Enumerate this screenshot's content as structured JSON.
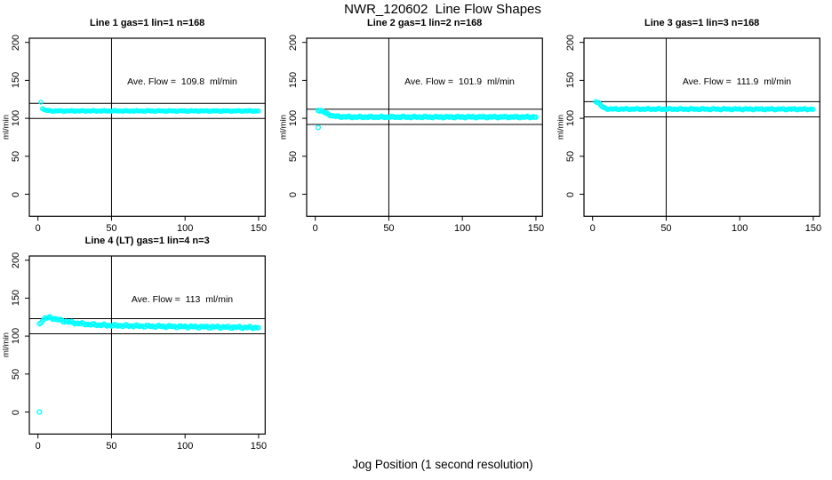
{
  "page": {
    "main_title": "NWR_120602  Line Flow Shapes",
    "bottom_axis_label": "Jog Position (1 second resolution)",
    "y_axis_label": "ml/min",
    "point_color": "#00FFFF",
    "axis_color": "#000000",
    "background_color": "#FFFFFF"
  },
  "axes": {
    "x_ticks": [
      0,
      50,
      100,
      150
    ],
    "y_ticks": [
      0,
      50,
      100,
      150,
      200
    ],
    "xlim": [
      -6,
      154
    ],
    "ylim": [
      -28,
      205
    ],
    "grid": false
  },
  "chart_data": [
    {
      "type": "scatter",
      "title": "Line 1 gas=1 lin=1 n=168",
      "annotation": "Ave. Flow =  109.8  ml/min",
      "ave_flow_ml_min": 109.8,
      "gas": 1,
      "lin": 1,
      "n": 168,
      "vline_x": 50,
      "ref_lines_y": [
        119.8,
        99.8
      ],
      "x_step": 1,
      "keypoints": [
        [
          2,
          121.5
        ],
        [
          3,
          113.5
        ],
        [
          4,
          111.5
        ],
        [
          6,
          110.3
        ],
        [
          10,
          109.7
        ],
        [
          150,
          109.7
        ]
      ],
      "extra_points": [],
      "jitter": 0.7,
      "point_radius": 2.1
    },
    {
      "type": "scatter",
      "title": "Line 2 gas=1 lin=2 n=168",
      "annotation": "Ave. Flow =  101.9  ml/min",
      "ave_flow_ml_min": 101.9,
      "gas": 1,
      "lin": 2,
      "n": 168,
      "vline_x": 50,
      "ref_lines_y": [
        111.9,
        91.9
      ],
      "x_step": 1,
      "keypoints": [
        [
          2,
          110.8
        ],
        [
          4,
          110.2
        ],
        [
          6,
          108.0
        ],
        [
          9,
          105.0
        ],
        [
          12,
          103.2
        ],
        [
          16,
          102.2
        ],
        [
          24,
          101.7
        ],
        [
          150,
          101.7
        ]
      ],
      "extra_points": [
        [
          2,
          88
        ]
      ],
      "jitter": 1.0,
      "point_radius": 2.4
    },
    {
      "type": "scatter",
      "title": "Line 3 gas=1 lin=3 n=168",
      "annotation": "Ave. Flow =  111.9  ml/min",
      "ave_flow_ml_min": 111.9,
      "gas": 1,
      "lin": 3,
      "n": 168,
      "vline_x": 50,
      "ref_lines_y": [
        121.9,
        101.9
      ],
      "x_step": 1,
      "keypoints": [
        [
          2,
          122.5
        ],
        [
          4,
          121.0
        ],
        [
          5,
          118.0
        ],
        [
          7,
          114.5
        ],
        [
          9,
          112.8
        ],
        [
          13,
          112.2
        ],
        [
          150,
          112.0
        ]
      ],
      "extra_points": [],
      "jitter": 1.0,
      "point_radius": 2.2
    },
    {
      "type": "scatter",
      "title": "Line 4 (LT) gas=1 lin=4 n=3",
      "annotation": "Ave. Flow =  113  ml/min",
      "ave_flow_ml_min": 113,
      "gas": 1,
      "lin": 4,
      "n": 3,
      "vline_x": 50,
      "ref_lines_y": [
        123,
        103
      ],
      "x_step": 1,
      "keypoints": [
        [
          1,
          115
        ],
        [
          2,
          118
        ],
        [
          3,
          121
        ],
        [
          5,
          123.5
        ],
        [
          8,
          124.3
        ],
        [
          12,
          122.5
        ],
        [
          17,
          120.0
        ],
        [
          25,
          117.3
        ],
        [
          35,
          115.3
        ],
        [
          50,
          114.0
        ],
        [
          70,
          113.2
        ],
        [
          100,
          112.4
        ],
        [
          130,
          111.7
        ],
        [
          150,
          111.2
        ]
      ],
      "extra_points": [
        [
          1,
          0
        ]
      ],
      "jitter": 1.6,
      "point_radius": 2.3
    }
  ]
}
